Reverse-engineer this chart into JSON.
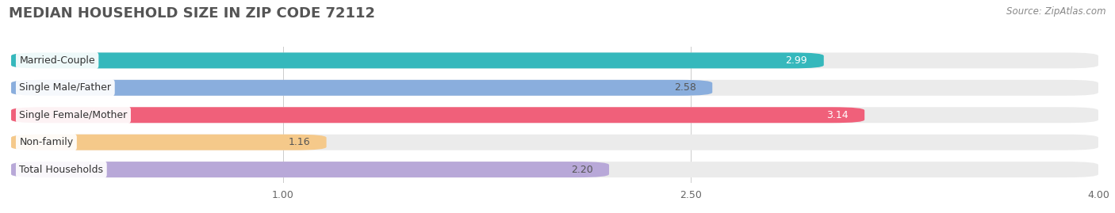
{
  "title": "MEDIAN HOUSEHOLD SIZE IN ZIP CODE 72112",
  "source": "Source: ZipAtlas.com",
  "categories": [
    "Married-Couple",
    "Single Male/Father",
    "Single Female/Mother",
    "Non-family",
    "Total Households"
  ],
  "values": [
    2.99,
    2.58,
    3.14,
    1.16,
    2.2
  ],
  "bar_colors": [
    "#35b8bc",
    "#8aaedd",
    "#f0607a",
    "#f5c98a",
    "#b8a8d8"
  ],
  "bar_bg_colors": [
    "#ebebeb",
    "#ebebeb",
    "#ebebeb",
    "#ebebeb",
    "#ebebeb"
  ],
  "value_text_colors": [
    "#ffffff",
    "#555555",
    "#ffffff",
    "#555555",
    "#555555"
  ],
  "xlim": [
    0,
    4.0
  ],
  "xstart": 0.0,
  "xticks": [
    1.0,
    2.5,
    4.0
  ],
  "title_fontsize": 13,
  "label_fontsize": 9,
  "value_fontsize": 9,
  "source_fontsize": 8.5,
  "background_color": "#ffffff",
  "bar_height": 0.58,
  "bar_gap": 0.42
}
